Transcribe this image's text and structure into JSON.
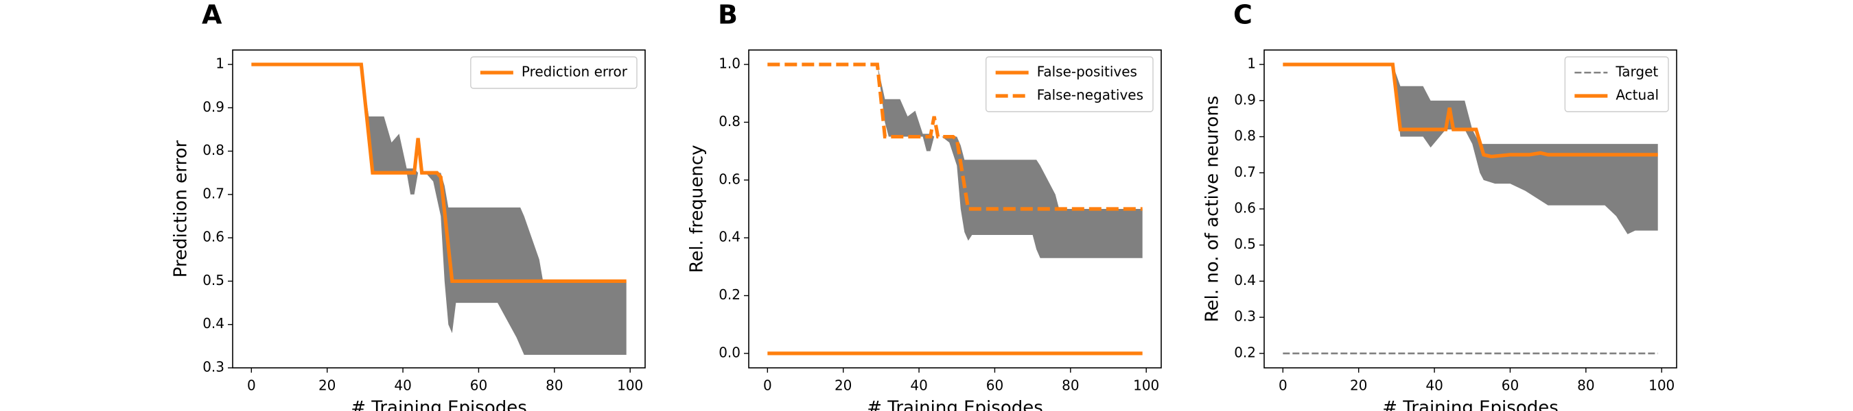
{
  "chart_data": [
    {
      "type": "line",
      "panel_label": "A",
      "xlabel": "# Training Episodes",
      "ylabel": "Prediction error",
      "xlim": [
        -4.95,
        103.95
      ],
      "xticks": [
        0,
        20,
        40,
        60,
        80,
        100
      ],
      "ylim": [
        0.3,
        1.0333
      ],
      "yticks": [
        0.3,
        0.4,
        0.5,
        0.6,
        0.7,
        0.8,
        0.9,
        1.0
      ],
      "legend": "upper right",
      "bands": [
        {
          "color": "#808080",
          "x": [
            29,
            31,
            32,
            35,
            37,
            39,
            41,
            42,
            43,
            44,
            46,
            48,
            50,
            51,
            52,
            53,
            54,
            65,
            70,
            71,
            72,
            76,
            77,
            99
          ],
          "upper": [
            1,
            0.88,
            0.88,
            0.88,
            0.82,
            0.84,
            0.76,
            0.76,
            0.76,
            0.75,
            0.75,
            0.75,
            0.75,
            0.72,
            0.67,
            0.67,
            0.67,
            0.67,
            0.67,
            0.67,
            0.65,
            0.55,
            0.5,
            0.5
          ],
          "lower": [
            1,
            0.8,
            0.75,
            0.75,
            0.75,
            0.75,
            0.75,
            0.7,
            0.7,
            0.75,
            0.75,
            0.73,
            0.65,
            0.5,
            0.4,
            0.38,
            0.45,
            0.45,
            0.37,
            0.35,
            0.33,
            0.33,
            0.33,
            0.33
          ]
        }
      ],
      "series": [
        {
          "name": "Prediction error",
          "color": "#ff7f0e",
          "linestyle": "solid",
          "x": [
            0,
            29,
            32,
            43,
            44,
            45,
            49,
            50,
            53,
            99
          ],
          "values": [
            1,
            1,
            0.75,
            0.75,
            0.83,
            0.75,
            0.75,
            0.74,
            0.5,
            0.5
          ]
        }
      ]
    },
    {
      "type": "line",
      "panel_label": "B",
      "xlabel": "# Training Episodes",
      "ylabel": "Rel. frequency",
      "xlim": [
        -4.95,
        103.95
      ],
      "xticks": [
        0,
        20,
        40,
        60,
        80,
        100
      ],
      "ylim": [
        -0.05,
        1.05
      ],
      "yticks": [
        {
          "value": 0,
          "label": "0.0"
        },
        0.2,
        0.4,
        0.6,
        0.8,
        {
          "value": 1,
          "label": "1.0"
        }
      ],
      "legend": "upper right",
      "bands": [
        {
          "color": "#808080",
          "x": [
            29,
            31,
            32,
            35,
            37,
            39,
            41,
            42,
            43,
            44,
            46,
            48,
            50,
            51,
            52,
            53,
            54,
            65,
            70,
            71,
            72,
            76,
            77,
            99
          ],
          "upper": [
            1,
            0.88,
            0.88,
            0.88,
            0.82,
            0.84,
            0.76,
            0.76,
            0.76,
            0.75,
            0.75,
            0.75,
            0.75,
            0.72,
            0.67,
            0.67,
            0.67,
            0.67,
            0.67,
            0.67,
            0.65,
            0.55,
            0.5,
            0.5
          ],
          "lower": [
            1,
            0.8,
            0.75,
            0.75,
            0.75,
            0.75,
            0.75,
            0.7,
            0.7,
            0.75,
            0.75,
            0.73,
            0.65,
            0.5,
            0.42,
            0.39,
            0.41,
            0.41,
            0.41,
            0.36,
            0.33,
            0.33,
            0.33,
            0.33
          ]
        }
      ],
      "series": [
        {
          "name": "False-positives",
          "color": "#ff7f0e",
          "linestyle": "solid",
          "x": [
            0,
            99
          ],
          "values": [
            0,
            0
          ]
        },
        {
          "name": "False-negatives",
          "color": "#ff7f0e",
          "linestyle": "dashed",
          "x": [
            0,
            29,
            31,
            43,
            44,
            45,
            49,
            50,
            53,
            99
          ],
          "values": [
            1,
            1,
            0.75,
            0.75,
            0.82,
            0.75,
            0.75,
            0.74,
            0.5,
            0.5
          ]
        }
      ]
    },
    {
      "type": "line",
      "panel_label": "C",
      "xlabel": "# Training Episodes",
      "ylabel": "Rel. no. of active neurons",
      "xlim": [
        -4.95,
        103.95
      ],
      "xticks": [
        0,
        20,
        40,
        60,
        80,
        100
      ],
      "ylim": [
        0.16,
        1.04
      ],
      "yticks": [
        0.2,
        0.3,
        0.4,
        0.5,
        0.6,
        0.7,
        0.8,
        0.9,
        1.0
      ],
      "legend": "upper right",
      "bands": [
        {
          "color": "#808080",
          "x": [
            29,
            31,
            37,
            39,
            43,
            48,
            50,
            52,
            53,
            56,
            60,
            64,
            70,
            85,
            88,
            91,
            93,
            99
          ],
          "upper": [
            1,
            0.94,
            0.94,
            0.9,
            0.9,
            0.9,
            0.82,
            0.78,
            0.78,
            0.78,
            0.78,
            0.78,
            0.78,
            0.78,
            0.78,
            0.78,
            0.78,
            0.78
          ],
          "lower": [
            1,
            0.8,
            0.8,
            0.77,
            0.82,
            0.82,
            0.78,
            0.7,
            0.68,
            0.67,
            0.67,
            0.65,
            0.61,
            0.61,
            0.58,
            0.53,
            0.54,
            0.54
          ]
        }
      ],
      "series": [
        {
          "name": "Target",
          "color": "#808080",
          "linestyle": "dashed",
          "x": [
            0,
            99
          ],
          "values": [
            0.2,
            0.2
          ]
        },
        {
          "name": "Actual",
          "color": "#ff7f0e",
          "linestyle": "solid",
          "x": [
            0,
            29,
            31,
            43,
            44,
            45,
            49,
            51,
            53,
            55,
            60,
            65,
            68,
            70,
            99
          ],
          "values": [
            1,
            1,
            0.82,
            0.82,
            0.88,
            0.82,
            0.82,
            0.82,
            0.75,
            0.745,
            0.75,
            0.75,
            0.755,
            0.75,
            0.75
          ]
        }
      ]
    }
  ]
}
